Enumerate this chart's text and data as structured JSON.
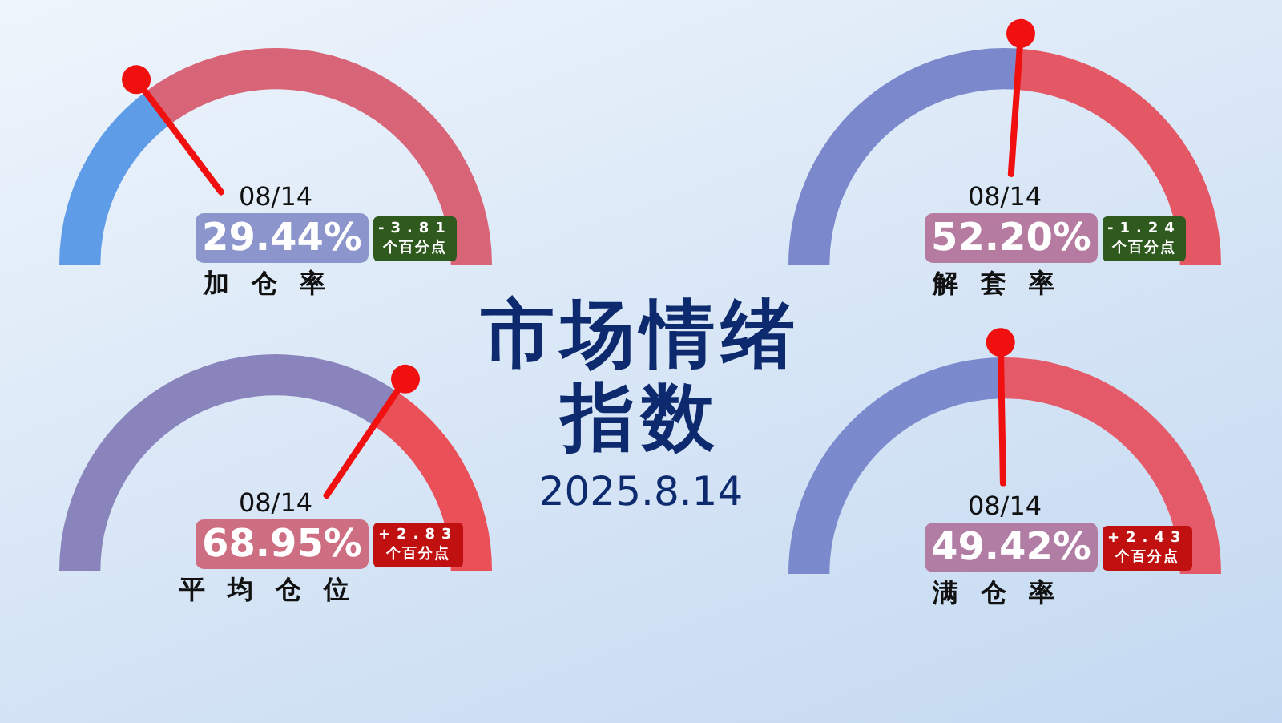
{
  "chart_data": [
    {
      "type": "donut",
      "title": "加仓率",
      "subtitle": "08/14",
      "categories": [
        null,
        null
      ],
      "values": [
        29.44,
        70.56
      ],
      "colors": [
        "#5f9ce8",
        "#d86478"
      ],
      "annotations": [
        "29.44%",
        "-3.81 个百分点"
      ]
    },
    {
      "type": "donut",
      "title": "解套率",
      "subtitle": "08/14",
      "categories": [
        null,
        null
      ],
      "values": [
        52.2,
        47.8
      ],
      "colors": [
        "#7c88cc",
        "#e45866"
      ],
      "annotations": [
        "52.20%",
        "-1.24 个百分点"
      ]
    },
    {
      "type": "other",
      "title": "市场情绪指数",
      "subtitle": "2025.8.14"
    },
    {
      "type": "donut",
      "title": "平均仓位",
      "subtitle": "08/14",
      "categories": [
        null,
        null
      ],
      "values": [
        68.95,
        31.05
      ],
      "colors": [
        "#8a84bc",
        "#ea5058"
      ],
      "annotations": [
        "68.95%",
        "+2.83 个百分点"
      ]
    },
    {
      "type": "donut",
      "title": "满仓率",
      "subtitle": "08/14",
      "categories": [
        null,
        null
      ],
      "values": [
        49.42,
        50.58
      ],
      "colors": [
        "#7a8acc",
        "#e45a68"
      ],
      "annotations": [
        "49.42%",
        "+2.43 个百分点"
      ]
    }
  ]
}
